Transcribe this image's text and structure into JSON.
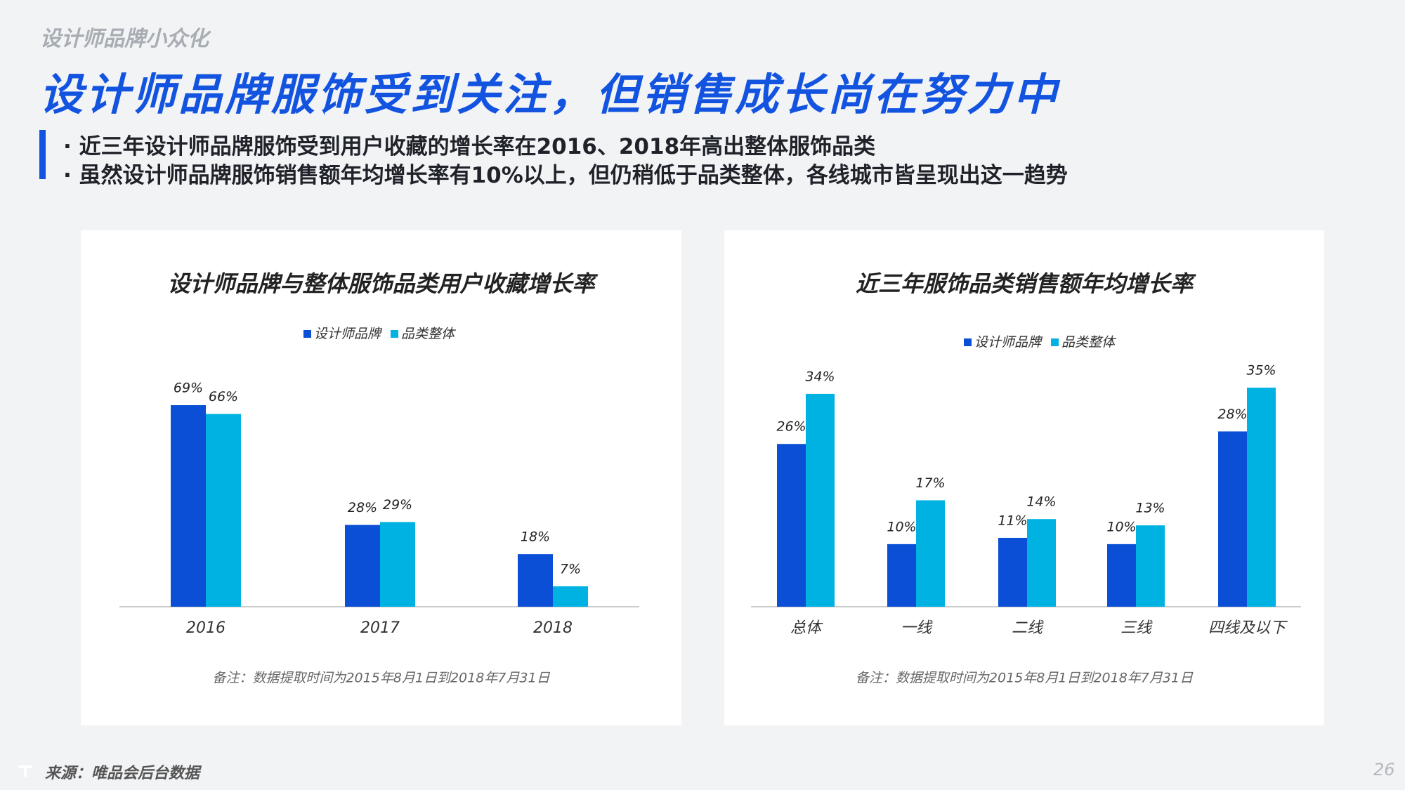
{
  "header": {
    "section": "设计师品牌小众化",
    "title": "设计师品牌服饰受到关注，但销售成长尚在努力中",
    "bullets": [
      "近三年设计师品牌服饰受到用户收藏的增长率在2016、2018年高出整体服饰品类",
      "虽然设计师品牌服饰销售额年均增长率有10%以上，但仍稍低于品类整体，各线城市皆呈现出这一趋势"
    ]
  },
  "chart_data": [
    {
      "type": "bar",
      "title": "设计师品牌与整体服饰品类用户收藏增长率",
      "note": "备注：数据提取时间为2015年8月1日到2018年7月31日",
      "categories": [
        "2016",
        "2017",
        "2018"
      ],
      "series": [
        {
          "name": "设计师品牌",
          "color": "#0a4fd6",
          "values": [
            69,
            28,
            18
          ],
          "value_labels": [
            "69%",
            "28%",
            "18%"
          ]
        },
        {
          "name": "品类整体",
          "color": "#00b2e2",
          "values": [
            66,
            29,
            7
          ],
          "value_labels": [
            "66%",
            "29%",
            "7%"
          ]
        }
      ]
    },
    {
      "type": "bar",
      "title": "近三年服饰品类销售额年均增长率",
      "note": "备注：数据提取时间为2015年8月1日到2018年7月31日",
      "categories": [
        "总体",
        "一线",
        "二线",
        "三线",
        "四线及以下"
      ],
      "series": [
        {
          "name": "设计师品牌",
          "color": "#0a4fd6",
          "values": [
            26,
            10,
            11,
            10,
            28
          ],
          "value_labels": [
            "26%",
            "10%",
            "11%",
            "10%",
            "28%"
          ]
        },
        {
          "name": "品类整体",
          "color": "#00b2e2",
          "values": [
            34,
            17,
            14,
            13,
            35
          ],
          "value_labels": [
            "34%",
            "17%",
            "14%",
            "13%",
            "35%"
          ]
        }
      ]
    }
  ],
  "footer": {
    "source": "来源：唯品会后台数据",
    "page": "26"
  }
}
